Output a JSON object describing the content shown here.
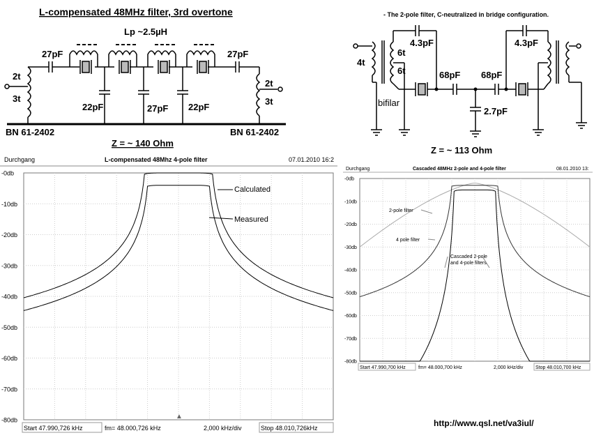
{
  "schematic_left": {
    "title": "L-compensated 48MHz filter, 3rd overtone",
    "inductance": "Lp ~2.5µH",
    "cap_series_left": "27pF",
    "cap_series_right": "27pF",
    "cap_shunt_1": "22pF",
    "cap_shunt_2": "27pF",
    "cap_shunt_3": "22pF",
    "winding_left_top": "2t",
    "winding_left_bottom": "3t",
    "winding_right_top": "2t",
    "winding_right_bottom": "3t",
    "core_left": "BN 61-2402",
    "core_right": "BN 61-2402",
    "impedance": "Z = ~ 140 Ohm"
  },
  "schematic_right": {
    "title": "- The 2-pole filter, C-neutralized in bridge configuration.",
    "winding_primary": "4t",
    "winding_sec_top": "6t",
    "winding_sec_bottom": "6t",
    "bifilar": "bifilar",
    "cap_neutral_left": "4.3pF",
    "cap_neutral_right": "4.3pF",
    "cap_series_left": "68pF",
    "cap_series_right": "68pF",
    "cap_shunt": "2.7pF",
    "impedance": "Z = ~ 113 Ohm"
  },
  "plot_left": {
    "mode": "Durchgang",
    "title": "L-compensated 48Mhz 4-pole filter",
    "date": "07.01.2010 16:2",
    "y_ticks": [
      "-0db",
      "-10db",
      "-20db",
      "-30db",
      "-40db",
      "-50db",
      "-60db",
      "-70db",
      "-80db"
    ],
    "start": "Start  47.990,726 kHz",
    "center": "fm=  48.000,726  kHz",
    "div": "2,000  kHz/div",
    "stop": "Stop  48.010,726kHz",
    "label_calc": "Calculated",
    "label_meas": "Measured"
  },
  "plot_right": {
    "mode": "Durchgang",
    "title": "Cascaded 48MHz 2-pole and 4-pole filter",
    "date": "08.01.2010 13:",
    "y_ticks": [
      "-0db",
      "-10db",
      "-20db",
      "-30db",
      "-40db",
      "-50db",
      "-60db",
      "-70db",
      "-80db"
    ],
    "start": "Start  47.990,700 kHz",
    "center": "fm=  48.000,700  kHz",
    "div": "2,000  kHz/div",
    "stop": "Stop  48.010,700 kHz",
    "label_2pole": "2-pole filter",
    "label_4pole": "4 pole filter",
    "label_casc1": "Cascaded 2-pole",
    "label_casc2": "and 4-pole filters"
  },
  "url": "http://www.qsl.net/va3iul/"
}
